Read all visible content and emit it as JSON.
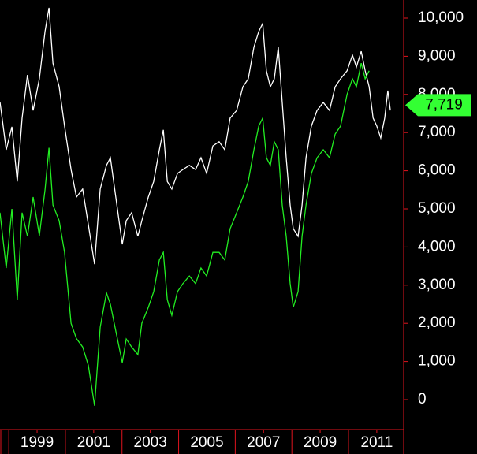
{
  "chart_data": {
    "type": "line",
    "x": [
      1997.69,
      1997.91,
      1998.11,
      1998.3,
      1998.47,
      1998.66,
      1998.86,
      1999.08,
      1999.28,
      1999.42,
      1999.56,
      1999.78,
      1999.97,
      2000.2,
      2000.39,
      2000.61,
      2000.81,
      2001.03,
      2001.23,
      2001.45,
      2001.59,
      2001.78,
      2002.01,
      2002.15,
      2002.34,
      2002.56,
      2002.7,
      2002.93,
      2003.12,
      2003.32,
      2003.46,
      2003.6,
      2003.76,
      2003.96,
      2004.15,
      2004.38,
      2004.6,
      2004.79,
      2004.99,
      2005.21,
      2005.43,
      2005.63,
      2005.82,
      2006.05,
      2006.27,
      2006.46,
      2006.66,
      2006.83,
      2006.97,
      2007.1,
      2007.24,
      2007.38,
      2007.52,
      2007.66,
      2007.8,
      2007.94,
      2008.05,
      2008.22,
      2008.36,
      2008.5,
      2008.69,
      2008.89,
      2009.11,
      2009.33,
      2009.53,
      2009.72,
      2009.95,
      2010.14,
      2010.28,
      2010.45,
      2010.59,
      2010.73,
      2010.87,
      2011.0,
      2011.14,
      2011.28,
      2011.39,
      2011.48
    ],
    "series": [
      {
        "color": "#ffffff",
        "values": [
          7800,
          6550,
          7150,
          5720,
          7380,
          8510,
          7580,
          8410,
          9650,
          10270,
          8820,
          8200,
          7170,
          6030,
          5310,
          5520,
          4590,
          3550,
          5520,
          6140,
          6340,
          5310,
          4070,
          4690,
          4900,
          4280,
          4690,
          5310,
          5720,
          6550,
          7070,
          5720,
          5520,
          5930,
          6030,
          6140,
          6030,
          6340,
          5930,
          6650,
          6760,
          6550,
          7380,
          7580,
          8200,
          8410,
          9240,
          9650,
          9860,
          8620,
          8200,
          8410,
          9240,
          7790,
          6340,
          5100,
          4480,
          4280,
          5100,
          6340,
          7170,
          7580,
          7790,
          7580,
          8200,
          8410,
          8620,
          9030,
          8720,
          9130,
          8620,
          8200,
          7380,
          7170,
          6860,
          7380,
          8100,
          7580
        ]
      },
      {
        "color": "#22ee22",
        "values": [
          4900,
          3450,
          5000,
          2620,
          4900,
          4280,
          5310,
          4300,
          5500,
          6600,
          5100,
          4690,
          3860,
          2000,
          1600,
          1380,
          900,
          -160,
          1900,
          2800,
          2500,
          1800,
          970,
          1590,
          1380,
          1180,
          2000,
          2420,
          2830,
          3660,
          3860,
          2620,
          2210,
          2830,
          3040,
          3240,
          3040,
          3450,
          3240,
          3860,
          3860,
          3660,
          4480,
          4900,
          5310,
          5720,
          6550,
          7170,
          7380,
          6340,
          6140,
          6760,
          6550,
          5100,
          4280,
          3040,
          2420,
          2830,
          4280,
          5100,
          5930,
          6340,
          6550,
          6340,
          6960,
          7170,
          8000,
          8410,
          8200,
          8820,
          8410,
          8620,
          null,
          null,
          null,
          null,
          null,
          null
        ]
      }
    ],
    "xlim": [
      1997.69,
      2011.95
    ],
    "xticks": [
      1999,
      2001,
      2003,
      2005,
      2007,
      2009,
      2011
    ],
    "ylim": [
      -785,
      10475
    ],
    "yticks": [
      0,
      {
        "value": 1000,
        "label": "1,000"
      },
      {
        "value": 2000,
        "label": "2,000"
      },
      {
        "value": 3000,
        "label": "3,000"
      },
      {
        "value": 4000,
        "label": "4,000"
      },
      {
        "value": 5000,
        "label": "5,000"
      },
      {
        "value": 6000,
        "label": "6,000"
      },
      {
        "value": 7000,
        "label": "7,000"
      },
      {
        "value": 8000,
        "label": "8,000"
      },
      {
        "value": 9000,
        "label": "9,000"
      },
      {
        "value": 10000,
        "label": "10,000"
      }
    ],
    "axis_color": "#e0141e",
    "annotations": [
      {
        "value": 7719,
        "label": "7,719",
        "color": "#33ff33"
      }
    ]
  }
}
